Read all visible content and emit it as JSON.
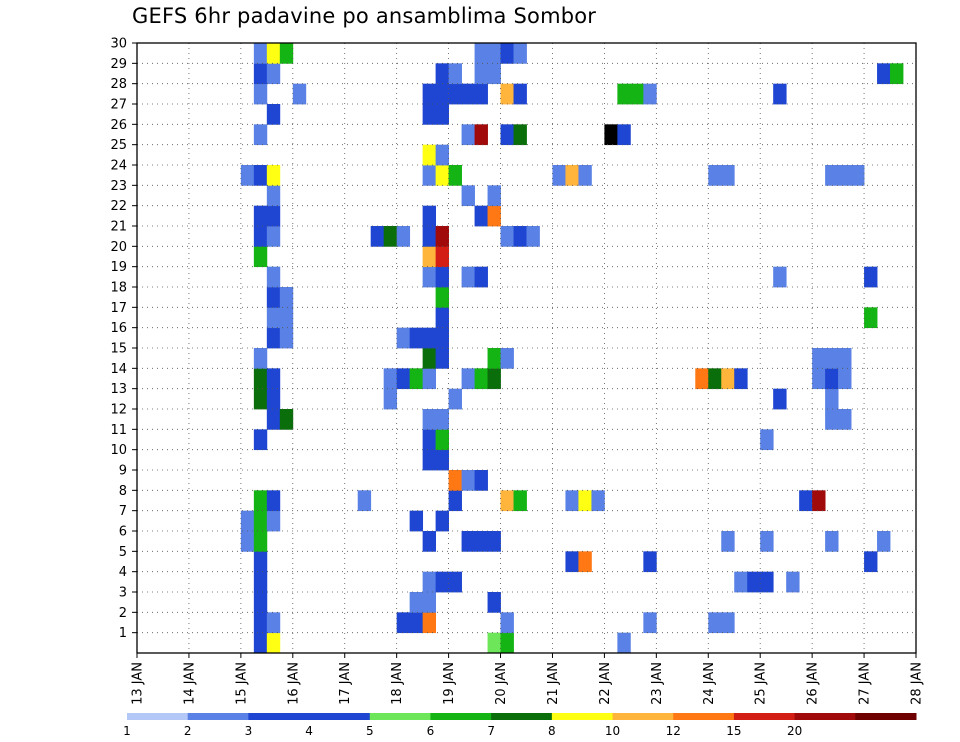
{
  "chart_data": {
    "type": "heatmap",
    "title": "GEFS 6hr padavine po ansamblima Sombor",
    "xlabel": "",
    "ylabel": "",
    "x_tick_labels": [
      "13 JAN",
      "14 JAN",
      "15 JAN",
      "16 JAN",
      "17 JAN",
      "18 JAN",
      "19 JAN",
      "20 JAN",
      "21 JAN",
      "22 JAN",
      "23 JAN",
      "24 JAN",
      "25 JAN",
      "26 JAN",
      "27 JAN",
      "28 JAN"
    ],
    "y_tick_labels": [
      "1",
      "2",
      "3",
      "4",
      "5",
      "6",
      "7",
      "8",
      "9",
      "10",
      "11",
      "12",
      "13",
      "14",
      "15",
      "16",
      "17",
      "18",
      "19",
      "20",
      "21",
      "22",
      "23",
      "24",
      "25",
      "26",
      "27",
      "28",
      "29",
      "30"
    ],
    "xlim": [
      0,
      60
    ],
    "ylim": [
      0,
      30
    ],
    "grid": true,
    "legend_position": "bottom",
    "legend": {
      "tick_labels": [
        "1",
        "2",
        "3",
        "4",
        "5",
        "6",
        "7",
        "8",
        "10",
        "12",
        "15",
        "20"
      ],
      "colors": [
        "#b4c8f8",
        "#5a82e6",
        "#1e46d2",
        "#1e46d2",
        "#6ee65a",
        "#14b414",
        "#0a6e0a",
        "#ffff14",
        "#ffb43c",
        "#ff7814",
        "#d21e14",
        "#a00a0a",
        "#6e0000"
      ]
    },
    "cells": [
      [
        9,
        0,
        3
      ],
      [
        10,
        0,
        7
      ],
      [
        27,
        0,
        4
      ],
      [
        28,
        0,
        5
      ],
      [
        37,
        0,
        1
      ],
      [
        9,
        1,
        3
      ],
      [
        10,
        1,
        1
      ],
      [
        20,
        1,
        3
      ],
      [
        21,
        1,
        3
      ],
      [
        22,
        1,
        9
      ],
      [
        28,
        1,
        1
      ],
      [
        39,
        1,
        1
      ],
      [
        44,
        1,
        1
      ],
      [
        45,
        1,
        1
      ],
      [
        9,
        2,
        2
      ],
      [
        21,
        2,
        1
      ],
      [
        22,
        2,
        1
      ],
      [
        27,
        2,
        3
      ],
      [
        9,
        3,
        2
      ],
      [
        22,
        3,
        1
      ],
      [
        23,
        3,
        3
      ],
      [
        24,
        3,
        3
      ],
      [
        46,
        3,
        1
      ],
      [
        47,
        3,
        2
      ],
      [
        48,
        3,
        2
      ],
      [
        50,
        3,
        1
      ],
      [
        9,
        4,
        3
      ],
      [
        33,
        4,
        2
      ],
      [
        34,
        4,
        9
      ],
      [
        39,
        4,
        3
      ],
      [
        56,
        4,
        2
      ],
      [
        8,
        5,
        1
      ],
      [
        9,
        5,
        5
      ],
      [
        22,
        5,
        2
      ],
      [
        25,
        5,
        2
      ],
      [
        26,
        5,
        2
      ],
      [
        27,
        5,
        2
      ],
      [
        45,
        5,
        1
      ],
      [
        48,
        5,
        1
      ],
      [
        53,
        5,
        1
      ],
      [
        57,
        5,
        1
      ],
      [
        8,
        6,
        1
      ],
      [
        9,
        6,
        5
      ],
      [
        10,
        6,
        1
      ],
      [
        21,
        6,
        3
      ],
      [
        23,
        6,
        3
      ],
      [
        9,
        7,
        5
      ],
      [
        10,
        7,
        2
      ],
      [
        17,
        7,
        1
      ],
      [
        24,
        7,
        2
      ],
      [
        28,
        7,
        8
      ],
      [
        29,
        7,
        5
      ],
      [
        33,
        7,
        1
      ],
      [
        34,
        7,
        7
      ],
      [
        35,
        7,
        1
      ],
      [
        51,
        7,
        2
      ],
      [
        52,
        7,
        11
      ],
      [
        24,
        8,
        9
      ],
      [
        25,
        8,
        1
      ],
      [
        26,
        8,
        2
      ],
      [
        22,
        9,
        2
      ],
      [
        23,
        9,
        2
      ],
      [
        9,
        10,
        3
      ],
      [
        22,
        10,
        3
      ],
      [
        23,
        10,
        5
      ],
      [
        48,
        10,
        1
      ],
      [
        10,
        11,
        2
      ],
      [
        11,
        11,
        6
      ],
      [
        22,
        11,
        1
      ],
      [
        23,
        11,
        1
      ],
      [
        53,
        11,
        1
      ],
      [
        54,
        11,
        1
      ],
      [
        9,
        12,
        6
      ],
      [
        10,
        12,
        2
      ],
      [
        19,
        12,
        1
      ],
      [
        24,
        12,
        1
      ],
      [
        49,
        12,
        2
      ],
      [
        53,
        12,
        1
      ],
      [
        9,
        13,
        6
      ],
      [
        10,
        13,
        3
      ],
      [
        19,
        13,
        1
      ],
      [
        20,
        13,
        2
      ],
      [
        21,
        13,
        5
      ],
      [
        22,
        13,
        1
      ],
      [
        25,
        13,
        1
      ],
      [
        26,
        13,
        5
      ],
      [
        27,
        13,
        6
      ],
      [
        43,
        13,
        9
      ],
      [
        44,
        13,
        6
      ],
      [
        45,
        13,
        8
      ],
      [
        46,
        13,
        2
      ],
      [
        52,
        13,
        1
      ],
      [
        53,
        13,
        2
      ],
      [
        54,
        13,
        1
      ],
      [
        9,
        14,
        1
      ],
      [
        22,
        14,
        6
      ],
      [
        23,
        14,
        3
      ],
      [
        27,
        14,
        5
      ],
      [
        28,
        14,
        1
      ],
      [
        52,
        14,
        1
      ],
      [
        53,
        14,
        1
      ],
      [
        54,
        14,
        1
      ],
      [
        10,
        15,
        3
      ],
      [
        11,
        15,
        1
      ],
      [
        20,
        15,
        1
      ],
      [
        21,
        15,
        3
      ],
      [
        22,
        15,
        3
      ],
      [
        23,
        15,
        3
      ],
      [
        10,
        16,
        1
      ],
      [
        11,
        16,
        1
      ],
      [
        23,
        16,
        3
      ],
      [
        56,
        16,
        5
      ],
      [
        10,
        17,
        3
      ],
      [
        11,
        17,
        1
      ],
      [
        23,
        17,
        5
      ],
      [
        10,
        18,
        1
      ],
      [
        22,
        18,
        1
      ],
      [
        23,
        18,
        2
      ],
      [
        25,
        18,
        1
      ],
      [
        26,
        18,
        3
      ],
      [
        49,
        18,
        1
      ],
      [
        56,
        18,
        2
      ],
      [
        9,
        19,
        5
      ],
      [
        22,
        19,
        8
      ],
      [
        23,
        19,
        10
      ],
      [
        9,
        20,
        3
      ],
      [
        10,
        20,
        1
      ],
      [
        18,
        20,
        3
      ],
      [
        19,
        20,
        6
      ],
      [
        20,
        20,
        1
      ],
      [
        22,
        20,
        3
      ],
      [
        23,
        20,
        11
      ],
      [
        28,
        20,
        1
      ],
      [
        29,
        20,
        3
      ],
      [
        30,
        20,
        1
      ],
      [
        9,
        21,
        3
      ],
      [
        10,
        21,
        3
      ],
      [
        22,
        21,
        3
      ],
      [
        26,
        21,
        2
      ],
      [
        27,
        21,
        9
      ],
      [
        10,
        22,
        1
      ],
      [
        25,
        22,
        1
      ],
      [
        27,
        22,
        1
      ],
      [
        8,
        23,
        1
      ],
      [
        9,
        23,
        2
      ],
      [
        10,
        23,
        7
      ],
      [
        22,
        23,
        1
      ],
      [
        23,
        23,
        7
      ],
      [
        24,
        23,
        5
      ],
      [
        32,
        23,
        1
      ],
      [
        33,
        23,
        8
      ],
      [
        34,
        23,
        1
      ],
      [
        44,
        23,
        1
      ],
      [
        45,
        23,
        1
      ],
      [
        53,
        23,
        1
      ],
      [
        54,
        23,
        1
      ],
      [
        55,
        23,
        1
      ],
      [
        22,
        24,
        7
      ],
      [
        23,
        24,
        1
      ],
      [
        9,
        25,
        1
      ],
      [
        25,
        25,
        1
      ],
      [
        26,
        25,
        11
      ],
      [
        28,
        25,
        2
      ],
      [
        29,
        25,
        6
      ],
      [
        36,
        25,
        13
      ],
      [
        37,
        25,
        3
      ],
      [
        10,
        26,
        3
      ],
      [
        22,
        26,
        2
      ],
      [
        23,
        26,
        3
      ],
      [
        9,
        27,
        1
      ],
      [
        12,
        27,
        1
      ],
      [
        22,
        27,
        2
      ],
      [
        23,
        27,
        3
      ],
      [
        24,
        27,
        3
      ],
      [
        25,
        27,
        2
      ],
      [
        26,
        27,
        3
      ],
      [
        28,
        27,
        8
      ],
      [
        29,
        27,
        2
      ],
      [
        37,
        27,
        5
      ],
      [
        38,
        27,
        5
      ],
      [
        39,
        27,
        1
      ],
      [
        49,
        27,
        2
      ],
      [
        9,
        28,
        2
      ],
      [
        10,
        28,
        1
      ],
      [
        23,
        28,
        3
      ],
      [
        24,
        28,
        1
      ],
      [
        26,
        28,
        1
      ],
      [
        27,
        28,
        1
      ],
      [
        57,
        28,
        3
      ],
      [
        58,
        28,
        5
      ],
      [
        9,
        29,
        1
      ],
      [
        10,
        29,
        7
      ],
      [
        11,
        29,
        5
      ],
      [
        26,
        29,
        1
      ],
      [
        27,
        29,
        1
      ],
      [
        28,
        29,
        2
      ],
      [
        29,
        29,
        1
      ]
    ]
  }
}
